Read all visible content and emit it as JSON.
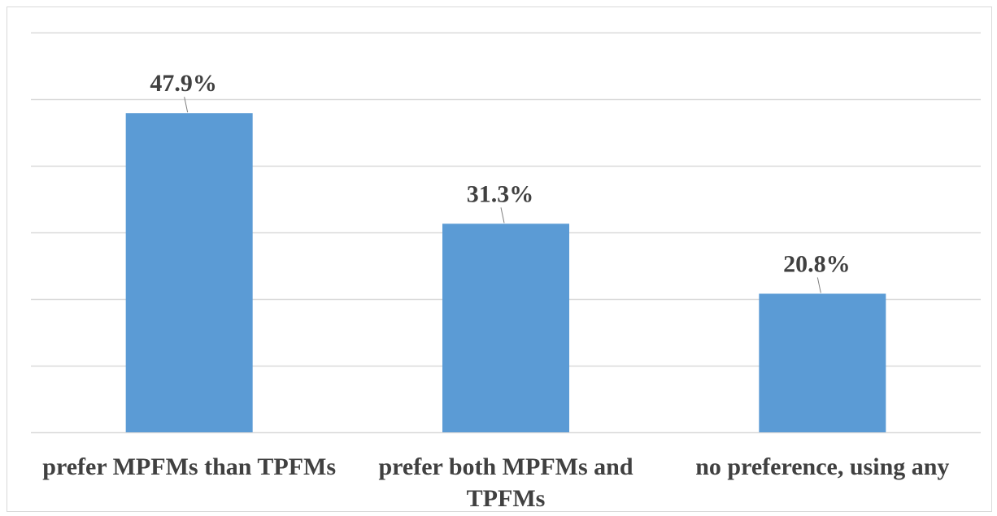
{
  "chart_data": {
    "type": "bar",
    "categories": [
      [
        "prefer MPFMs than TPFMs"
      ],
      [
        "prefer both MPFMs and",
        "TPFMs"
      ],
      [
        "no preference, using any"
      ]
    ],
    "values": [
      47.9,
      31.3,
      20.8
    ],
    "data_labels": [
      "47.9%",
      "31.3%",
      "20.8%"
    ],
    "ylim": [
      0,
      60
    ],
    "grid": true,
    "colors": {
      "bar": "#5b9bd5",
      "grid": "#d9d9d9",
      "text": "#404040",
      "leader": "#7f7f7f"
    }
  }
}
